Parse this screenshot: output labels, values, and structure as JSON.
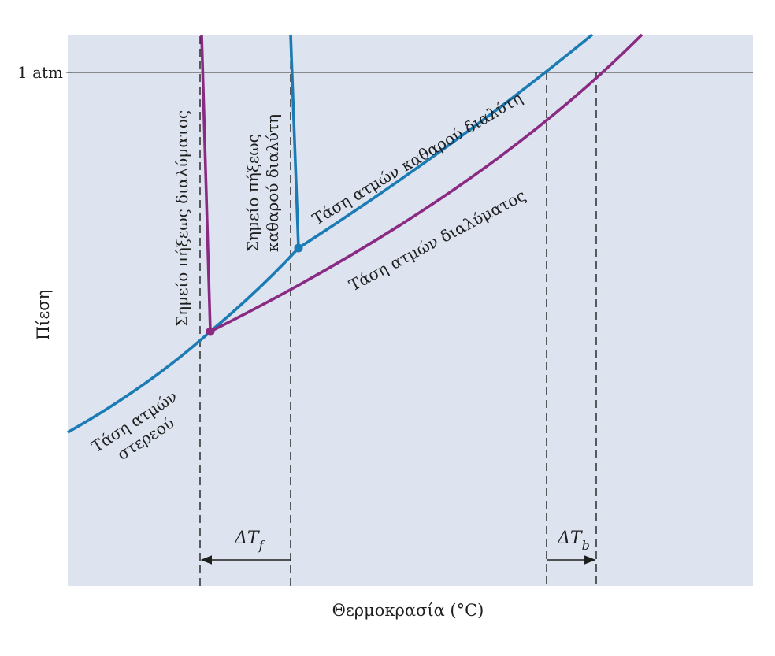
{
  "diagram": {
    "y_axis_label": "Πίεση",
    "x_axis_label": "Θερμοκρασία (°C)",
    "pressure_tick": "1 atm",
    "labels": {
      "solid_vapor": [
        "Τάση ατμών",
        "στερεού"
      ],
      "solution_freezing": "Σημείο πήξεως διαλύματος",
      "solvent_freezing": [
        "Σημείο πήξεως",
        "καθαρού διαλύτη"
      ],
      "solvent_vapor": "Τάση ατμών καθαρού διαλύτη",
      "solution_vapor": "Τάση ατμών διαλύματος"
    },
    "delta_tf": {
      "symbol": "ΔT",
      "sub": "f"
    },
    "delta_tb": {
      "symbol": "ΔT",
      "sub": "b"
    },
    "colors": {
      "panel": "#dde3ef",
      "solvent": "#1a7bb5",
      "solution": "#8a2a83",
      "line": "#1f1f1f"
    }
  }
}
